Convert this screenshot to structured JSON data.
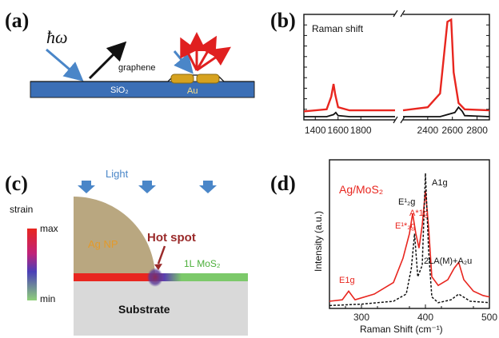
{
  "panels": {
    "a": {
      "label": "(a)",
      "hbar_omega": "ħω",
      "graphene": "graphene",
      "sio2": "SiO₂",
      "au": "Au",
      "colors": {
        "substrate": "#3b6fb6",
        "gold": "#d6a21f",
        "arrow_in": "#4a86c8",
        "arrow_out": "#e02020"
      }
    },
    "b": {
      "label": "(b)",
      "title": "Raman shift"
    },
    "c": {
      "label": "(c)",
      "light": "Light",
      "strain": "strain",
      "max": "max",
      "min": "min",
      "ag_np": "Ag NP",
      "hot_spot": "Hot spot",
      "mos2": "1L MoS₂",
      "substrate": "Substrate",
      "colors": {
        "ag": "#b9a780",
        "substrate": "#d9d9d9",
        "hot": "#c03a3a",
        "mos2": "#7cc96a",
        "red": "#e8261f"
      }
    },
    "d": {
      "label": "(d)",
      "legend": "Ag/MoS₂",
      "peaks": {
        "a1g": "A1g",
        "e2g1": "E¹₂g",
        "a1g_star": "A*1g",
        "e2g_star": "E¹*₂g",
        "e1g": "E1g",
        "twola": "2LA(M)+A₂u"
      }
    }
  },
  "chart_data": [
    {
      "type": "line",
      "panel": "b",
      "title": "Raman shift",
      "xlim": [
        1300,
        2900
      ],
      "axis_break": [
        2100,
        2200
      ],
      "xticks": [
        1400,
        1600,
        1800,
        2400,
        2600,
        2800
      ],
      "series": [
        {
          "color": "#e8261f",
          "x": [
            1300,
            1500,
            1540,
            1560,
            1575,
            1600,
            1700,
            2100,
            2200,
            2400,
            2500,
            2560,
            2590,
            2610,
            2650,
            2700,
            2900
          ],
          "y": [
            0.08,
            0.1,
            0.22,
            0.34,
            0.24,
            0.12,
            0.09,
            0.09,
            0.09,
            0.12,
            0.25,
            0.93,
            0.95,
            0.45,
            0.16,
            0.1,
            0.09
          ]
        },
        {
          "color": "#111111",
          "x": [
            1300,
            1500,
            1560,
            1580,
            1600,
            1700,
            2100,
            2200,
            2500,
            2620,
            2650,
            2680,
            2700,
            2900
          ],
          "y": [
            0.03,
            0.03,
            0.05,
            0.07,
            0.04,
            0.03,
            0.03,
            0.03,
            0.03,
            0.07,
            0.12,
            0.08,
            0.04,
            0.03
          ]
        }
      ]
    },
    {
      "type": "line",
      "panel": "d",
      "xlabel": "Raman Shift (cm⁻¹)",
      "ylabel": "Intensity (a.u.)",
      "xlim": [
        250,
        500
      ],
      "xticks": [
        300,
        400,
        500
      ],
      "series": [
        {
          "color": "#e8261f",
          "style": "solid",
          "x": [
            250,
            270,
            280,
            290,
            320,
            350,
            365,
            375,
            380,
            385,
            390,
            395,
            400,
            405,
            410,
            420,
            435,
            445,
            452,
            460,
            475,
            490,
            500
          ],
          "y": [
            0.05,
            0.06,
            0.12,
            0.06,
            0.1,
            0.18,
            0.35,
            0.52,
            0.66,
            0.52,
            0.42,
            0.58,
            0.82,
            0.56,
            0.22,
            0.16,
            0.2,
            0.28,
            0.32,
            0.2,
            0.12,
            0.09,
            0.08
          ]
        },
        {
          "color": "#111111",
          "style": "dashed",
          "x": [
            250,
            300,
            350,
            370,
            378,
            383,
            388,
            395,
            400,
            405,
            410,
            420,
            440,
            452,
            470,
            500
          ],
          "y": [
            0.02,
            0.03,
            0.05,
            0.1,
            0.28,
            0.52,
            0.22,
            0.3,
            0.94,
            0.4,
            0.08,
            0.04,
            0.06,
            0.1,
            0.05,
            0.04
          ]
        }
      ]
    }
  ]
}
